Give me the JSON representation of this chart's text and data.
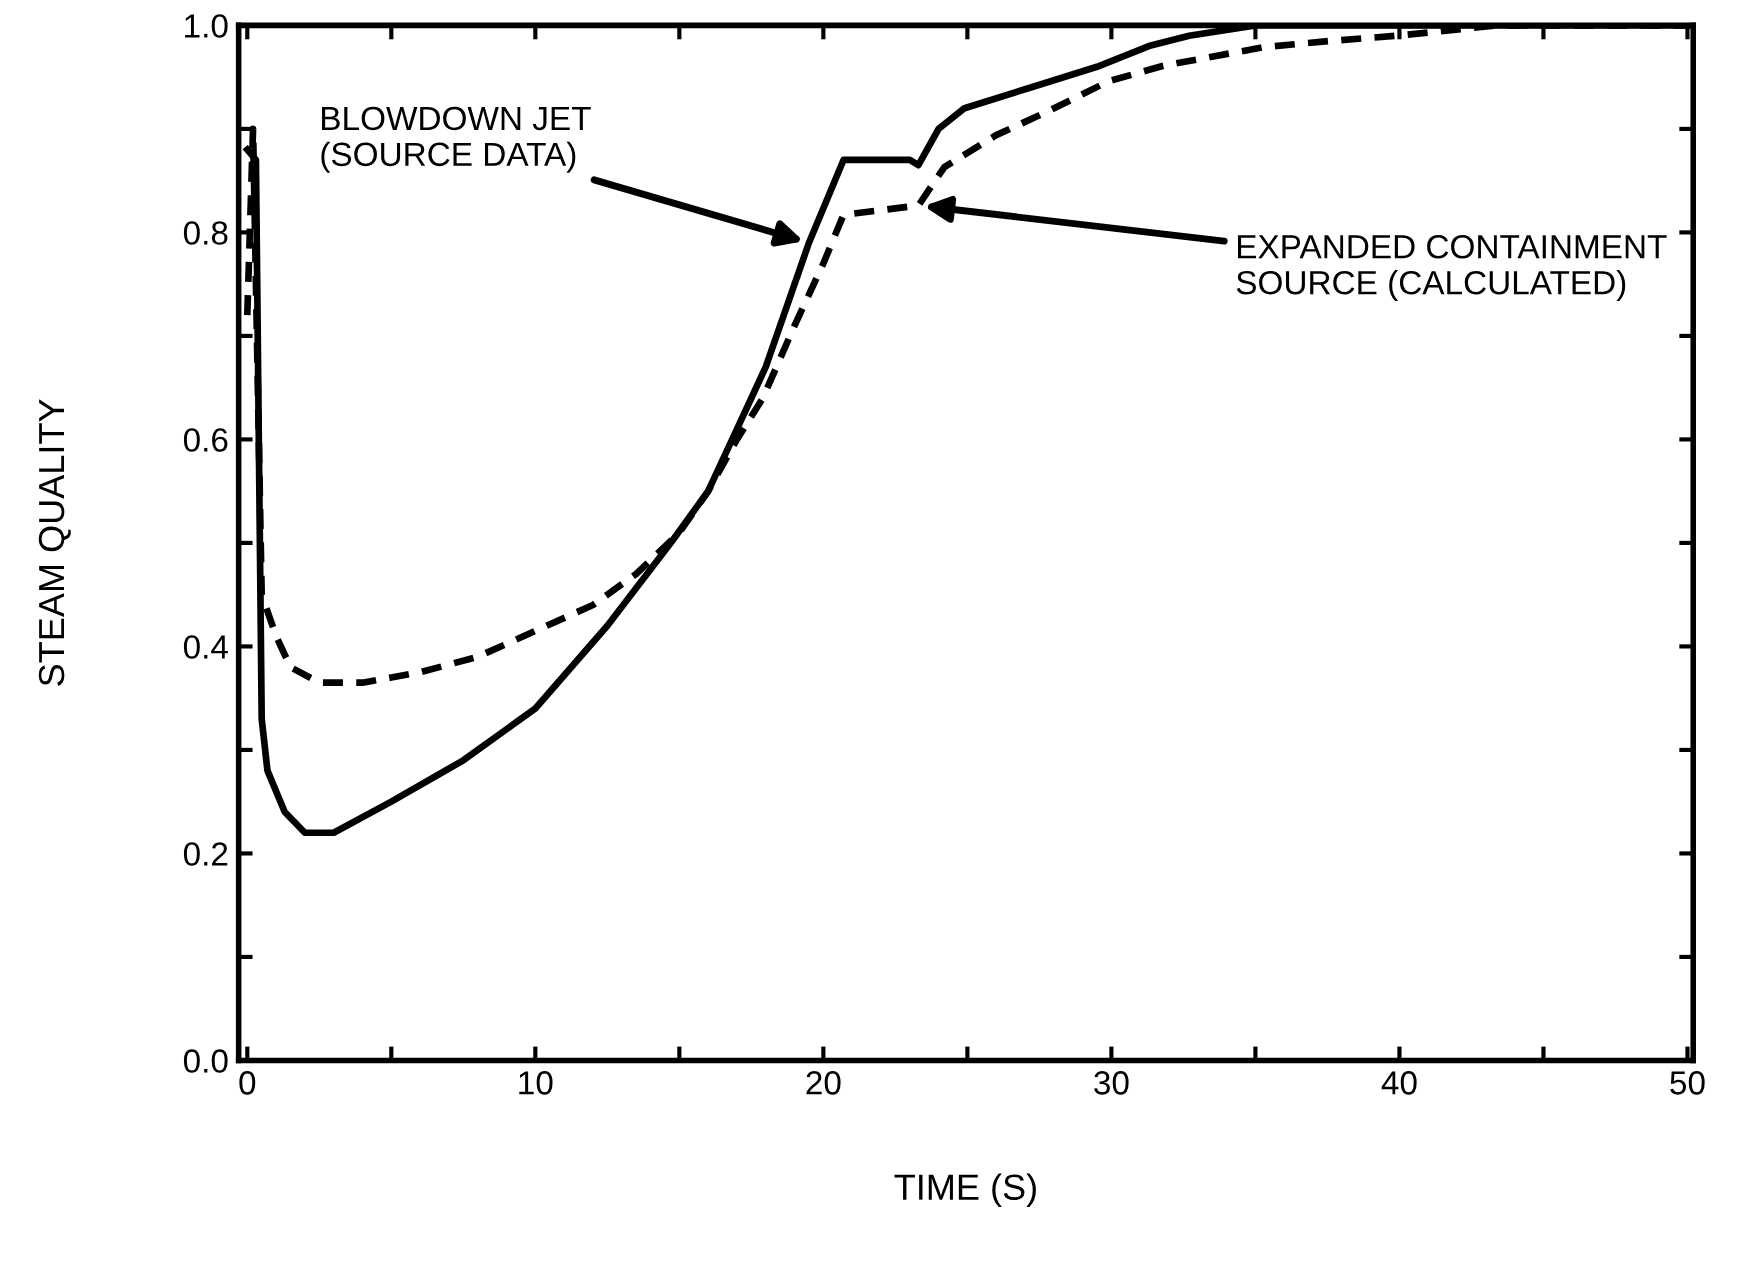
{
  "chart_data": {
    "type": "line",
    "xlabel": "TIME (S)",
    "ylabel": "STEAM QUALITY",
    "xlim": [
      -0.3,
      50.2
    ],
    "ylim": [
      0,
      1.0
    ],
    "xticks": [
      0,
      {
        "value": 5,
        "label": null
      },
      10,
      {
        "value": 15,
        "label": null
      },
      20,
      {
        "value": 25,
        "label": null
      },
      30,
      {
        "value": 35,
        "label": null
      },
      40,
      {
        "value": 45,
        "label": null
      },
      50
    ],
    "yticks": [
      {
        "value": 0,
        "label": "0.0"
      },
      {
        "value": 0.1,
        "label": null
      },
      0.2,
      {
        "value": 0.3,
        "label": null
      },
      0.4,
      {
        "value": 0.5,
        "label": null
      },
      0.6,
      {
        "value": 0.7,
        "label": null
      },
      0.8,
      {
        "value": 0.9,
        "label": null
      },
      {
        "value": 1.0,
        "label": "1.0"
      }
    ],
    "grid": false,
    "legend": false,
    "series": [
      {
        "color": "#000000",
        "line_style": "solid",
        "x": [
          0,
          0.3,
          0.5,
          0.7,
          1.3,
          2,
          3,
          5,
          7.5,
          10,
          12.5,
          14.7,
          16,
          17,
          18,
          19.5,
          20.7,
          23,
          23.3,
          24,
          24.9,
          27.2,
          29.5,
          31.3,
          32.7,
          35,
          50
        ],
        "values": [
          0.88,
          0.87,
          0.33,
          0.28,
          0.24,
          0.22,
          0.22,
          0.25,
          0.29,
          0.34,
          0.42,
          0.5,
          0.55,
          0.61,
          0.67,
          0.79,
          0.87,
          0.87,
          0.865,
          0.9,
          0.92,
          0.94,
          0.96,
          0.98,
          0.99,
          1.0,
          1.0
        ]
      },
      {
        "color": "#000000",
        "line_style": "dashed",
        "x": [
          0,
          0.2,
          0.5,
          1,
          1.5,
          2.5,
          4,
          5,
          6,
          8,
          10,
          12,
          13.5,
          15,
          16,
          17,
          17.9,
          19,
          20,
          20.7,
          23.3,
          24.2,
          26,
          27.8,
          29.9,
          31.8,
          35.3,
          37.6,
          39.9,
          43.4,
          50
        ],
        "values": [
          0.72,
          0.9,
          0.45,
          0.41,
          0.38,
          0.365,
          0.365,
          0.37,
          0.375,
          0.39,
          0.415,
          0.44,
          0.47,
          0.51,
          0.55,
          0.6,
          0.64,
          0.71,
          0.77,
          0.817,
          0.826,
          0.863,
          0.894,
          0.917,
          0.946,
          0.961,
          0.979,
          0.985,
          0.99,
          1.0,
          1.0
        ]
      }
    ],
    "annotations": [
      {
        "text": "BLOWDOWN JET\n(SOURCE DATA)",
        "x": 19.5,
        "y": 0.79
      },
      {
        "text": "EXPANDED CONTAINMENT\nSOURCE (CALCULATED)",
        "x": 23.3,
        "y": 0.826
      }
    ]
  }
}
